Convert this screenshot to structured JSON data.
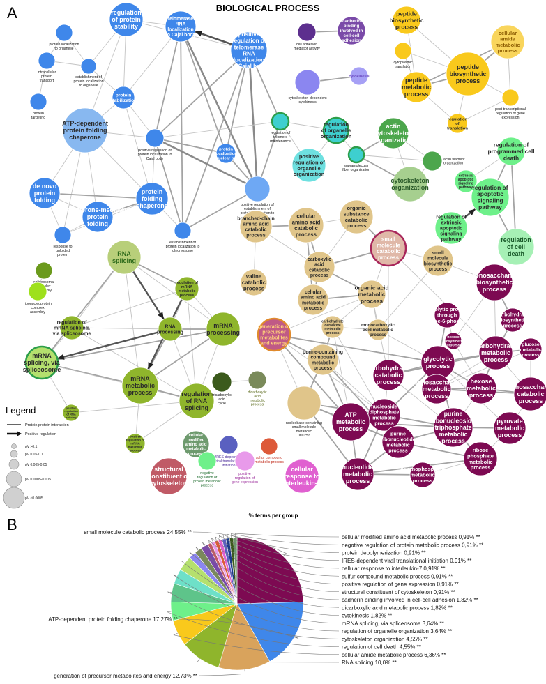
{
  "panel_a": {
    "letter": "A",
    "title": "BIOLOGICAL PROCESS",
    "footer": "% terms per group",
    "legend": {
      "title": "Legend",
      "lines": [
        {
          "id": "ppi",
          "label": "Protein protein interaction"
        },
        {
          "id": "pos",
          "label": "Positive regulation"
        }
      ],
      "sizes": [
        "pV >0.1",
        "pV 0.05-0.1",
        "pV 0.005-0.05",
        "pV 0.0005-0.005",
        "pV <0.0005"
      ]
    },
    "nodes": [
      {
        "id": "n1",
        "label": [
          "protein localization",
          "to organelle"
        ],
        "color": "#3f87ea"
      },
      {
        "id": "n2",
        "label": [
          "regulation",
          "of protein",
          "stability"
        ],
        "color": "#3f87ea"
      },
      {
        "id": "n3",
        "label": [
          "telomerase",
          "RNA",
          "localization",
          "to Cajal body"
        ],
        "color": "#3f87ea"
      },
      {
        "id": "n4",
        "label": [
          "positive",
          "regulation of",
          "telomerase",
          "RNA",
          "localization",
          "to Cajal body"
        ],
        "color": "#3f87ea"
      },
      {
        "id": "n5",
        "label": [
          "intracellular",
          "protein",
          "transport"
        ],
        "color": "#3f87ea"
      },
      {
        "id": "n6",
        "label": [
          "establishment of",
          "protein localization",
          "to organelle"
        ],
        "color": "#3f87ea"
      },
      {
        "id": "n7",
        "label": [
          "protein",
          "targeting"
        ],
        "color": "#3f87ea"
      },
      {
        "id": "n8",
        "label": [
          "protein",
          "stabilization"
        ],
        "color": "#3f87ea"
      },
      {
        "id": "n9",
        "label": [
          "ATP-dependent",
          "protein folding",
          "chaperone"
        ],
        "color": "#88b8f0"
      },
      {
        "id": "n10",
        "label": [
          "positive regulation of",
          "protein localization to",
          "Cajal body"
        ],
        "color": "#3f87ea"
      },
      {
        "id": "n11",
        "label": [
          "protein",
          "localization",
          "to nuclear body"
        ],
        "color": "#3f87ea"
      },
      {
        "id": "n12",
        "label": [
          "'de novo'",
          "protein",
          "folding"
        ],
        "color": "#3f87ea"
      },
      {
        "id": "n13",
        "label": [
          "protein",
          "folding",
          "chaperone"
        ],
        "color": "#3f87ea"
      },
      {
        "id": "n14",
        "label": [
          "chaperone-mediated",
          "protein",
          "folding"
        ],
        "color": "#3f87ea"
      },
      {
        "id": "n15",
        "label": [
          "positive regulation of",
          "establishment of",
          "protein localization to",
          "telomere"
        ],
        "color": "#6ea8f4"
      },
      {
        "id": "n16",
        "label": [
          "response to",
          "unfolded",
          "protein"
        ],
        "color": "#3f87ea"
      },
      {
        "id": "n17",
        "label": [
          "establishment of",
          "protein localization to",
          "chromosome"
        ],
        "color": "#3f87ea"
      },
      {
        "id": "n18",
        "label": [
          "regulation of",
          "telomere",
          "maintenance"
        ],
        "color": "#3ecfcf"
      },
      {
        "id": "n19",
        "label": [
          "cell adhesion",
          "mediator activity"
        ],
        "color": "#5d2f8e"
      },
      {
        "id": "n20",
        "label": [
          "cadherin",
          "binding",
          "involved in",
          "cell-cell",
          "adhesion"
        ],
        "color": "#7a4aa8"
      },
      {
        "id": "n21",
        "label": [
          "cytoskeleton-dependent",
          "cytokinesis"
        ],
        "color": "#8b86f0"
      },
      {
        "id": "n22",
        "label": [
          "cytokinesis"
        ],
        "color": "#a6a0f5"
      },
      {
        "id": "n23",
        "label": [
          "regulation",
          "of organelle",
          "organization"
        ],
        "color": "#3ecfcf"
      },
      {
        "id": "n24",
        "label": [
          "positive",
          "regulation of",
          "organelle",
          "organization"
        ],
        "color": "#6ee0e0"
      },
      {
        "id": "n25",
        "label": [
          "supramolecular",
          "fiber organization"
        ],
        "color": "#3ecfcf"
      },
      {
        "id": "n26",
        "label": [
          "actin",
          "cytoskeleton",
          "organization"
        ],
        "color": "#4ca64c"
      },
      {
        "id": "n27",
        "label": [
          "actin filament",
          "organization"
        ],
        "color": "#4ca64c"
      },
      {
        "id": "n28",
        "label": [
          "cytoskeleton",
          "organization"
        ],
        "color": "#a6cf8f"
      },
      {
        "id": "n29",
        "label": [
          "peptide",
          "biosynthetic",
          "process"
        ],
        "color": "#f9c91c"
      },
      {
        "id": "n30",
        "label": [
          "cellular",
          "amide",
          "metabolic",
          "process"
        ],
        "color": "#f9d55c"
      },
      {
        "id": "n31",
        "label": [
          "cytoplasmic",
          "translation"
        ],
        "color": "#f9c91c"
      },
      {
        "id": "n32",
        "label": [
          "peptide",
          "biosynthetic",
          "process"
        ],
        "color": "#f9c91c"
      },
      {
        "id": "n33",
        "label": [
          "peptide",
          "metabolic",
          "process"
        ],
        "color": "#f9c91c"
      },
      {
        "id": "n34",
        "label": [
          "regulation",
          "of",
          "translation"
        ],
        "color": "#f9c91c"
      },
      {
        "id": "n35",
        "label": [
          "post-transcriptional",
          "regulation of gene",
          "expression"
        ],
        "color": "#f9c91c"
      },
      {
        "id": "n36",
        "label": [
          "regulation of",
          "programmed cell",
          "death"
        ],
        "color": "#6ef08a"
      },
      {
        "id": "n37",
        "label": [
          "extrinsic",
          "apoptotic",
          "signaling",
          "pathway"
        ],
        "color": "#6ef08a"
      },
      {
        "id": "n38",
        "label": [
          "regulation of",
          "apoptotic",
          "signaling",
          "pathway"
        ],
        "color": "#6ef08a"
      },
      {
        "id": "n39",
        "label": [
          "regulation of",
          "extrinsic",
          "apoptotic",
          "signaling",
          "pathway"
        ],
        "color": "#6ef08a"
      },
      {
        "id": "n40",
        "label": [
          "regulation",
          "of cell",
          "death"
        ],
        "color": "#a6f0b5"
      },
      {
        "id": "n41",
        "label": [
          "RNA",
          "splicing"
        ],
        "color": "#b8cf7a"
      },
      {
        "id": "n42",
        "label": [
          "spliceosomal",
          "complex",
          "assembly"
        ],
        "color": "#6b9a1c"
      },
      {
        "id": "n43",
        "label": [
          "ribonucleoprotein",
          "complex",
          "assembly"
        ],
        "color": "#9ee01c"
      },
      {
        "id": "n44",
        "label": [
          "regulation of",
          "mRNA",
          "metabolic",
          "process"
        ],
        "color": "#8fb52c"
      },
      {
        "id": "n45",
        "label": [
          "regulation of",
          "mRNA splicing,",
          "via spliceosome"
        ],
        "color": "#8fb52c"
      },
      {
        "id": "n46",
        "label": [
          "RNA",
          "processing"
        ],
        "color": "#8fb52c"
      },
      {
        "id": "n47",
        "label": [
          "mRNA",
          "processing"
        ],
        "color": "#8fb52c"
      },
      {
        "id": "n48",
        "label": [
          "mRNA",
          "splicing, via",
          "spliceosome"
        ],
        "color": "#b5e06e"
      },
      {
        "id": "n49",
        "label": [
          "mRNA",
          "metabolic",
          "process"
        ],
        "color": "#8fb52c"
      },
      {
        "id": "n50",
        "label": [
          "regulation",
          "of RNA",
          "splicing"
        ],
        "color": "#8fb52c"
      },
      {
        "id": "n51",
        "label": [
          "positive",
          "regulation",
          "of RNA",
          "splicing"
        ],
        "color": "#8fb52c"
      },
      {
        "id": "n52",
        "label": [
          "positive",
          "regulation of",
          "mRNA",
          "metabolic",
          "process"
        ],
        "color": "#8fb52c"
      },
      {
        "id": "n53",
        "label": [
          "tricarboxylic",
          "acid",
          "cycle"
        ],
        "color": "#3b5a1c"
      },
      {
        "id": "n54",
        "label": [
          "dicarboxylic",
          "acid",
          "metabolic",
          "process"
        ],
        "color": "#7a8a5a"
      },
      {
        "id": "n55",
        "label": [
          "cellular",
          "modified",
          "amino acid",
          "metabolic",
          "process"
        ],
        "color": "#6e9a6e"
      },
      {
        "id": "n56",
        "label": [
          "IRES-dependent",
          "viral translational",
          "initiation"
        ],
        "color": "#5a60c0"
      },
      {
        "id": "n57",
        "label": [
          "sulfur compound",
          "metabolic process"
        ],
        "color": "#dd5a3a"
      },
      {
        "id": "n58",
        "label": [
          "structural",
          "constituent of",
          "cytoskeleton"
        ],
        "color": "#c05a66"
      },
      {
        "id": "n59",
        "label": [
          "negative",
          "regulation of",
          "protein metabolic",
          "process"
        ],
        "color": "#6ef08a"
      },
      {
        "id": "n60",
        "label": [
          "positive",
          "regulation of",
          "gene expression"
        ],
        "color": "#e89aea"
      },
      {
        "id": "n61",
        "label": [
          "cellular",
          "response to",
          "interleukin-7"
        ],
        "color": "#e060d0"
      },
      {
        "id": "n62",
        "label": [
          "branched-chain",
          "amino acid",
          "catabolic",
          "process"
        ],
        "color": "#e0c58a"
      },
      {
        "id": "n63",
        "label": [
          "cellular",
          "amino acid",
          "catabolic",
          "process"
        ],
        "color": "#e0c58a"
      },
      {
        "id": "n64",
        "label": [
          "organic",
          "substance",
          "catabolic",
          "process"
        ],
        "color": "#e0c58a"
      },
      {
        "id": "n65",
        "label": [
          "small",
          "molecule",
          "catabolic",
          "process"
        ],
        "color": "#e0b8a8"
      },
      {
        "id": "n66",
        "label": [
          "valine",
          "catabolic",
          "process"
        ],
        "color": "#e0c58a"
      },
      {
        "id": "n67",
        "label": [
          "carboxylic",
          "acid",
          "catabolic",
          "process"
        ],
        "color": "#e0c58a"
      },
      {
        "id": "n68",
        "label": [
          "small",
          "molecule",
          "biosynthetic",
          "process"
        ],
        "color": "#e0c58a"
      },
      {
        "id": "n69",
        "label": [
          "cellular",
          "amino acid",
          "metabolic",
          "process"
        ],
        "color": "#e0c58a"
      },
      {
        "id": "n70",
        "label": [
          "organic acid",
          "metabolic",
          "process"
        ],
        "color": "#e0c58a"
      },
      {
        "id": "n71",
        "label": [
          "monocarboxylic",
          "acid metabolic",
          "process"
        ],
        "color": "#e0c58a"
      },
      {
        "id": "n72",
        "label": [
          "generation of",
          "precursor",
          "metabolites",
          "and energy"
        ],
        "color": "#c05a86"
      },
      {
        "id": "n73",
        "label": [
          "carbohydrate",
          "derivative",
          "metabolic",
          "process"
        ],
        "color": "#e0c58a"
      },
      {
        "id": "n74",
        "label": [
          "purine-containing",
          "compound",
          "metabolic",
          "process"
        ],
        "color": "#e0c58a"
      },
      {
        "id": "n75",
        "label": [
          "nucleobase-containing",
          "small molecule",
          "metabolic",
          "process"
        ],
        "color": "#e0c58a"
      },
      {
        "id": "n76",
        "label": [
          "monosaccharide",
          "biosynthetic",
          "process"
        ],
        "color": "#7d0a52"
      },
      {
        "id": "n77",
        "label": [
          "glycolytic process",
          "through",
          "glucose-6-phosphate"
        ],
        "color": "#7d0a52"
      },
      {
        "id": "n78",
        "label": [
          "carbohydrate",
          "biosynthetic",
          "process"
        ],
        "color": "#7d0a52"
      },
      {
        "id": "n79",
        "label": [
          "hexose",
          "biosynthetic",
          "process"
        ],
        "color": "#7d0a52"
      },
      {
        "id": "n80",
        "label": [
          "carbohydrate",
          "catabolic",
          "process"
        ],
        "color": "#7d0a52"
      },
      {
        "id": "n81",
        "label": [
          "glycolytic",
          "process"
        ],
        "color": "#7d0a52"
      },
      {
        "id": "n82",
        "label": [
          "hexose",
          "metabolic",
          "process"
        ],
        "color": "#7d0a52"
      },
      {
        "id": "n83",
        "label": [
          "carbohydrate",
          "metabolic",
          "process"
        ],
        "color": "#7d0a52"
      },
      {
        "id": "n84",
        "label": [
          "glucose",
          "metabolic",
          "process"
        ],
        "color": "#7d0a52"
      },
      {
        "id": "n85",
        "label": [
          "nucleoside",
          "diphosphate",
          "metabolic",
          "process"
        ],
        "color": "#7d0a52"
      },
      {
        "id": "n86",
        "label": [
          "monosaccharide",
          "metabolic",
          "process"
        ],
        "color": "#7d0a52"
      },
      {
        "id": "n87",
        "label": [
          "monosaccharide",
          "catabolic",
          "process"
        ],
        "color": "#7d0a52"
      },
      {
        "id": "n88",
        "label": [
          "ATP",
          "metabolic",
          "process"
        ],
        "color": "#7d0a52"
      },
      {
        "id": "n89",
        "label": [
          "purine",
          "ribonucleotide",
          "metabolic",
          "process"
        ],
        "color": "#7d0a52"
      },
      {
        "id": "n90",
        "label": [
          "purine",
          "ribonucleoside",
          "triphosphate",
          "metabolic",
          "process"
        ],
        "color": "#7d0a52"
      },
      {
        "id": "n91",
        "label": [
          "pyruvate",
          "metabolic",
          "process"
        ],
        "color": "#7d0a52"
      },
      {
        "id": "n92",
        "label": [
          "nucleotide",
          "metabolic",
          "process"
        ],
        "color": "#7d0a52"
      },
      {
        "id": "n93",
        "label": [
          "organophosphate",
          "metabolic",
          "process"
        ],
        "color": "#7d0a52"
      },
      {
        "id": "n94",
        "label": [
          "ribose",
          "phosphate",
          "metabolic",
          "process"
        ],
        "color": "#7d0a52"
      }
    ]
  },
  "panel_b": {
    "letter": "B",
    "chart_data": {
      "type": "pie",
      "slices": [
        {
          "label": "small molecule catabolic process 24,55% **",
          "value": 24.55,
          "color": "#7d0a52"
        },
        {
          "label": "ATP-dependent protein folding chaperone 17,27% **",
          "value": 17.27,
          "color": "#3f87ea"
        },
        {
          "label": "generation of precursor metabolites and energy 12,73% **",
          "value": 12.73,
          "color": "#d9a35c"
        },
        {
          "label": "RNA splicing 10,0% **",
          "value": 10.0,
          "color": "#8fb52c"
        },
        {
          "label": "cellular amide metabolic process 6,36% **",
          "value": 6.36,
          "color": "#f9c91c"
        },
        {
          "label": "regulation of cell death 4,55% **",
          "value": 4.55,
          "color": "#6ef08a"
        },
        {
          "label": "cytoskeleton organization 4,55% **",
          "value": 4.55,
          "color": "#5ec48a"
        },
        {
          "label": "regulation of organelle organization 3,64% **",
          "value": 3.64,
          "color": "#6ee0c8"
        },
        {
          "label": "mRNA splicing, via spliceosome 3,64% **",
          "value": 3.64,
          "color": "#b5e06e"
        },
        {
          "label": "cytokinesis 1,82% **",
          "value": 1.82,
          "color": "#8b86f0"
        },
        {
          "label": "dicarboxylic acid metabolic process 1,82% **",
          "value": 1.82,
          "color": "#7a8a5a"
        },
        {
          "label": "cadherin binding involved in cell-cell adhesion 1,82% **",
          "value": 1.82,
          "color": "#7a4aa8"
        },
        {
          "label": "structural constituent of cytoskeleton 0,91% **",
          "value": 0.91,
          "color": "#c05a66"
        },
        {
          "label": "positive regulation of gene expression 0,91% **",
          "value": 0.91,
          "color": "#e89aea"
        },
        {
          "label": "sulfur compound metabolic process 0,91% **",
          "value": 0.91,
          "color": "#dd5a3a"
        },
        {
          "label": "cellular response to interleukin-7 0,91% **",
          "value": 0.91,
          "color": "#e060d0"
        },
        {
          "label": "IRES-dependent viral translational initiation 0,91% **",
          "value": 0.91,
          "color": "#5a60c0"
        },
        {
          "label": "protein depolymerization 0,91% **",
          "value": 0.91,
          "color": "#1c3a8a"
        },
        {
          "label": "negative regulation of protein metabolic process 0,91% **",
          "value": 0.91,
          "color": "#3b5a1c"
        },
        {
          "label": "cellular modified amino acid metabolic process 0,91% **",
          "value": 0.91,
          "color": "#6e9a6e"
        }
      ]
    }
  }
}
